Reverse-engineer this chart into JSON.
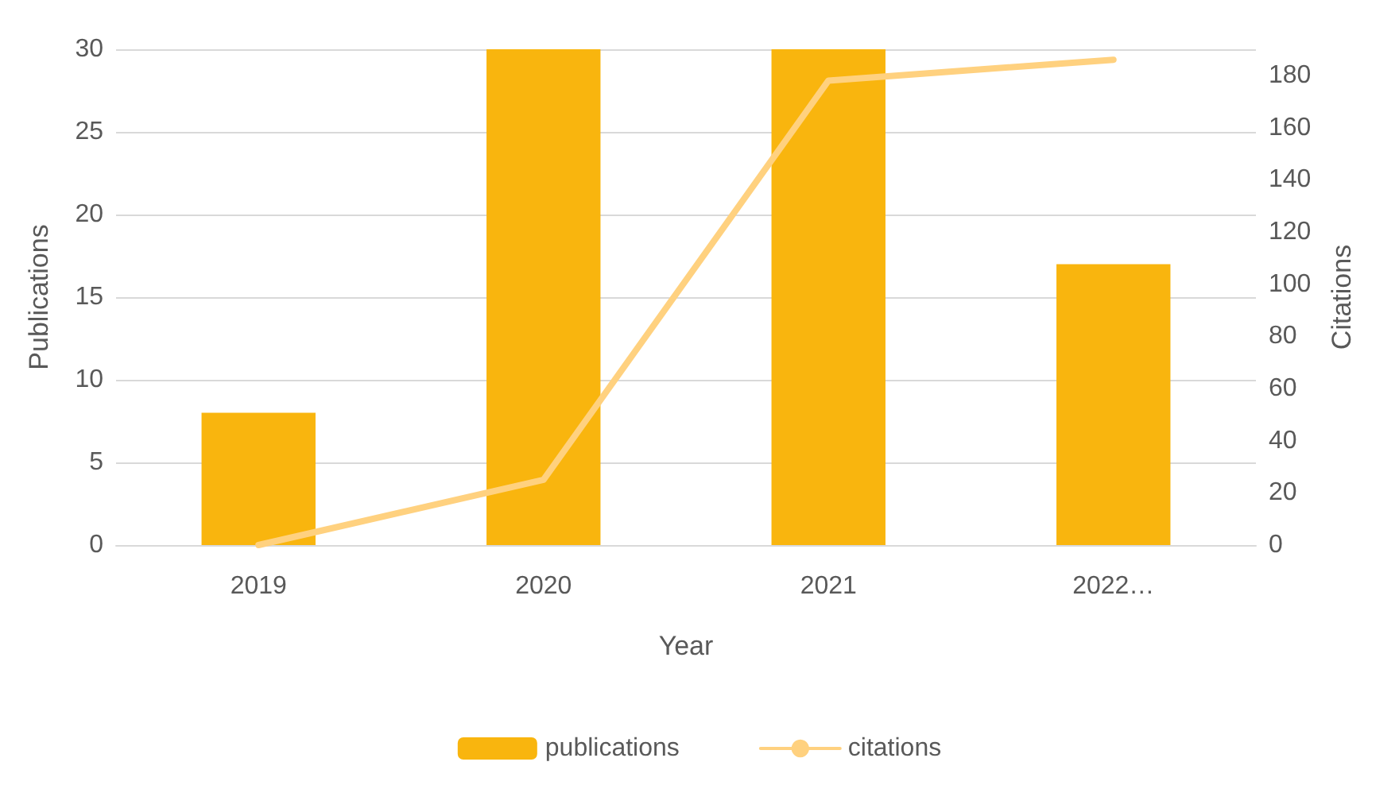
{
  "chart_data": {
    "type": "bar",
    "xlabel": "Year",
    "ylabel": "Publications",
    "y2label": "Citations",
    "categories": [
      "2019",
      "2020",
      "2021",
      "2022…"
    ],
    "series": [
      {
        "name": "publications",
        "color": "#f9b50e",
        "values": [
          8,
          30,
          30,
          17
        ]
      },
      {
        "name": "citations",
        "type": "line",
        "axis": "y2",
        "color": "#ffd17f",
        "values": [
          0,
          25,
          178,
          186
        ]
      }
    ],
    "ylim": [
      0,
      30
    ],
    "yticks": [
      0,
      5,
      10,
      15,
      20,
      25,
      30
    ],
    "y2lim": [
      0,
      190
    ],
    "y2ticks": [
      0,
      20,
      40,
      60,
      80,
      100,
      120,
      140,
      160,
      180
    ],
    "grid": "y",
    "legend": "bottom",
    "marker": "none",
    "line_style": "solid"
  }
}
